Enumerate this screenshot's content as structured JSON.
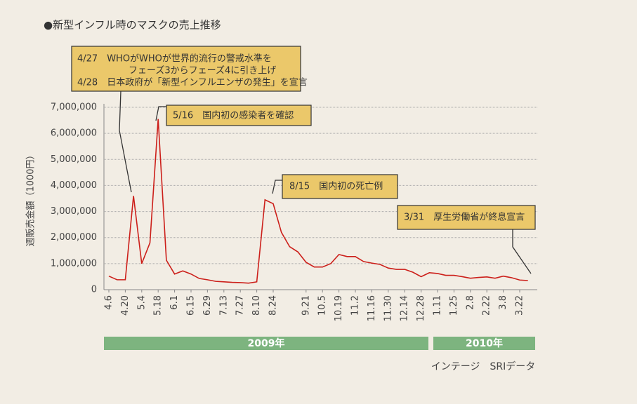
{
  "chart_data": {
    "type": "line",
    "title": "●新型インフル時のマスクの売上推移",
    "y_label": "週販売金額（1000円）",
    "source": "インテージ　SRIデータ",
    "year_groups": [
      "2009年",
      "2010年"
    ],
    "categories": [
      "4.6",
      null,
      "4.20",
      null,
      "5.4",
      null,
      "5.18",
      null,
      "6.1",
      null,
      "6.15",
      null,
      "6.29",
      null,
      "7.13",
      null,
      "7.27",
      null,
      "8.10",
      null,
      "8.24",
      null,
      null,
      null,
      "9.21",
      null,
      "10.5",
      null,
      "10.19",
      null,
      "11.2",
      null,
      "11.16",
      null,
      "11.30",
      null,
      "12.14",
      null,
      "12.28",
      null,
      "1.11",
      null,
      "1.25",
      null,
      "2.8",
      null,
      "2.22",
      null,
      "3.8",
      null,
      "3.22",
      null
    ],
    "series": [
      {
        "color": "#cc1f1a",
        "values": [
          520000,
          380000,
          380000,
          3600000,
          1000000,
          1800000,
          6550000,
          1130000,
          600000,
          720000,
          600000,
          430000,
          380000,
          320000,
          300000,
          280000,
          270000,
          250000,
          300000,
          3450000,
          3300000,
          2200000,
          1650000,
          1450000,
          1050000,
          870000,
          870000,
          1000000,
          1350000,
          1270000,
          1270000,
          1080000,
          1020000,
          970000,
          830000,
          780000,
          780000,
          670000,
          500000,
          650000,
          620000,
          550000,
          550000,
          500000,
          440000,
          470000,
          490000,
          440000,
          520000,
          460000,
          370000,
          350000
        ]
      }
    ],
    "ylim": [
      0,
      7000000
    ],
    "yticks": [
      0,
      {
        "value": 1000000,
        "label": "1,000,000"
      },
      {
        "value": 2000000,
        "label": "2,000,000"
      },
      {
        "value": 3000000,
        "label": "3,000,000"
      },
      {
        "value": 4000000,
        "label": "4,000,000"
      },
      {
        "value": 5000000,
        "label": "5,000,000"
      },
      {
        "value": 6000000,
        "label": "6,000,000"
      },
      {
        "value": 7000000,
        "label": "7,000,000"
      }
    ],
    "grid": true,
    "annotations": [
      {
        "lines": [
          "4/27　WHOがWHOが世界的流行の警戒水準を",
          "フェーズ3からフェーズ4に引き上げ",
          "4/28　日本政府が「新型インフルエンザの発生」を宣言"
        ]
      },
      {
        "lines": [
          "5/16　国内初の感染者を確認"
        ]
      },
      {
        "lines": [
          "8/15　国内初の死亡例"
        ]
      },
      {
        "lines": [
          "3/31　厚生労働省が終息宣言"
        ]
      }
    ]
  }
}
